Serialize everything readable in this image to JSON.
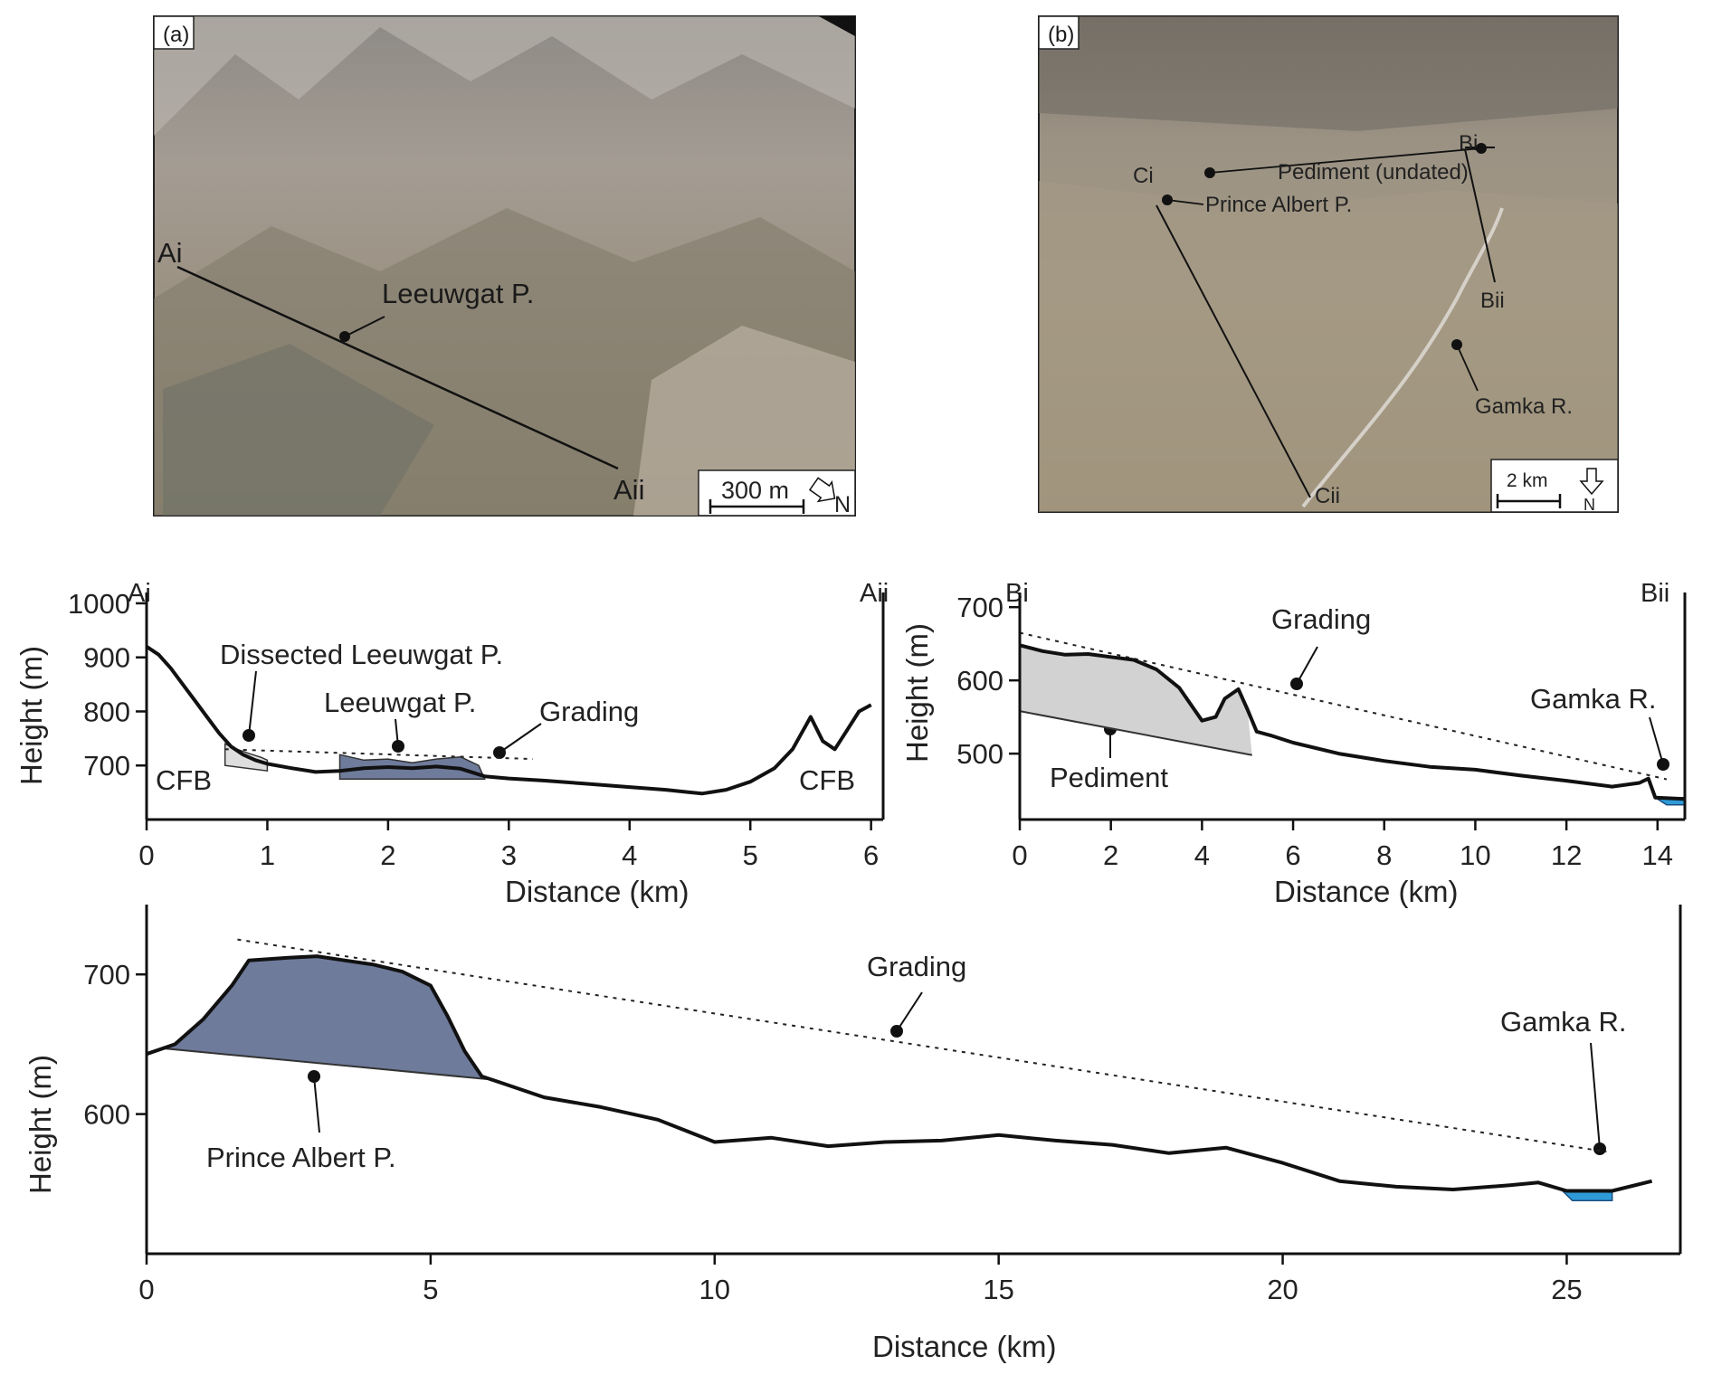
{
  "panel_a": {
    "label": "(a)",
    "profile_start": "Ai",
    "profile_end": "Aii",
    "feature": "Leeuwgat P.",
    "scale_text": "300 m",
    "north": "N"
  },
  "panel_b": {
    "label": "(b)",
    "markers": [
      "Bi",
      "Bii",
      "Ci",
      "Cii"
    ],
    "features": [
      "Pediment (undated)",
      "Prince Albert P.",
      "Gamka R."
    ],
    "scale_text": "2 km",
    "north": "N"
  },
  "chart_data": [
    {
      "type": "line",
      "corner_labels": [
        "Ai",
        "Aii"
      ],
      "xlabel": "Distance (km)",
      "ylabel": "Height (m)",
      "xlim": [
        0,
        6.1
      ],
      "ylim": [
        600,
        1020
      ],
      "xticks": [
        0,
        1,
        2,
        3,
        4,
        5,
        6
      ],
      "yticks": [
        700,
        800,
        900,
        1000
      ],
      "annotations": [
        "Dissected Leeuwgat P.",
        "Leeuwgat P.",
        "Grading",
        "CFB",
        "CFB"
      ],
      "profile": [
        [
          0,
          920
        ],
        [
          0.1,
          905
        ],
        [
          0.2,
          880
        ],
        [
          0.3,
          850
        ],
        [
          0.4,
          820
        ],
        [
          0.5,
          790
        ],
        [
          0.6,
          760
        ],
        [
          0.7,
          735
        ],
        [
          0.8,
          720
        ],
        [
          0.9,
          710
        ],
        [
          1.0,
          703
        ],
        [
          1.2,
          695
        ],
        [
          1.4,
          688
        ],
        [
          1.6,
          690
        ],
        [
          1.8,
          695
        ],
        [
          2.0,
          697
        ],
        [
          2.2,
          695
        ],
        [
          2.4,
          698
        ],
        [
          2.6,
          694
        ],
        [
          2.8,
          680
        ],
        [
          3.0,
          676
        ],
        [
          3.3,
          672
        ],
        [
          3.6,
          667
        ],
        [
          4.0,
          660
        ],
        [
          4.3,
          655
        ],
        [
          4.6,
          648
        ],
        [
          4.8,
          655
        ],
        [
          5.0,
          670
        ],
        [
          5.2,
          695
        ],
        [
          5.35,
          730
        ],
        [
          5.5,
          790
        ],
        [
          5.6,
          745
        ],
        [
          5.7,
          730
        ],
        [
          5.8,
          765
        ],
        [
          5.9,
          800
        ],
        [
          6.0,
          812
        ]
      ],
      "grading": [
        [
          0.65,
          730
        ],
        [
          3.2,
          712
        ]
      ],
      "dissected_pediment": [
        [
          0.65,
          740
        ],
        [
          0.75,
          730
        ],
        [
          0.85,
          722
        ],
        [
          0.95,
          715
        ],
        [
          1.0,
          710
        ],
        [
          1.0,
          690
        ],
        [
          0.65,
          700
        ]
      ],
      "pediment": [
        [
          1.6,
          720
        ],
        [
          1.8,
          710
        ],
        [
          2.0,
          712
        ],
        [
          2.2,
          705
        ],
        [
          2.4,
          712
        ],
        [
          2.6,
          716
        ],
        [
          2.75,
          700
        ],
        [
          2.8,
          675
        ],
        [
          1.6,
          675
        ]
      ]
    },
    {
      "type": "line",
      "corner_labels": [
        "Bi",
        "Bii"
      ],
      "xlabel": "Distance (km)",
      "ylabel": "Height (m)",
      "xlim": [
        0,
        14.6
      ],
      "ylim": [
        410,
        720
      ],
      "xticks": [
        0,
        2,
        4,
        6,
        8,
        10,
        12,
        14
      ],
      "yticks": [
        500,
        600,
        700
      ],
      "annotations": [
        "Grading",
        "Gamka R.",
        "Pediment"
      ],
      "profile": [
        [
          0,
          648
        ],
        [
          0.5,
          640
        ],
        [
          1.0,
          635
        ],
        [
          1.5,
          636
        ],
        [
          2.0,
          632
        ],
        [
          2.5,
          628
        ],
        [
          3.0,
          615
        ],
        [
          3.5,
          590
        ],
        [
          4.0,
          545
        ],
        [
          4.3,
          550
        ],
        [
          4.5,
          575
        ],
        [
          4.8,
          588
        ],
        [
          5.0,
          560
        ],
        [
          5.2,
          530
        ],
        [
          5.5,
          525
        ],
        [
          6.0,
          515
        ],
        [
          7.0,
          500
        ],
        [
          8.0,
          490
        ],
        [
          9.0,
          482
        ],
        [
          10.0,
          478
        ],
        [
          11.0,
          470
        ],
        [
          12.0,
          463
        ],
        [
          13.0,
          455
        ],
        [
          13.6,
          460
        ],
        [
          13.8,
          466
        ],
        [
          13.95,
          440
        ],
        [
          14.6,
          438
        ]
      ],
      "grading": [
        [
          0,
          665
        ],
        [
          14.2,
          465
        ]
      ],
      "pediment_base": [
        [
          0,
          558
        ],
        [
          5.1,
          498
        ]
      ],
      "river": [
        [
          13.95,
          440
        ],
        [
          14.6,
          440
        ],
        [
          14.6,
          430
        ],
        [
          14.2,
          430
        ]
      ]
    },
    {
      "type": "line",
      "xlabel": "Distance (km)",
      "ylabel": "Height (m)",
      "xlim": [
        0,
        27
      ],
      "ylim": [
        500,
        750
      ],
      "xticks": [
        0,
        5,
        10,
        15,
        20,
        25
      ],
      "yticks": [
        600,
        700
      ],
      "annotations": [
        "Grading",
        "Gamka R.",
        "Prince Albert P."
      ],
      "profile": [
        [
          0,
          643
        ],
        [
          0.5,
          650
        ],
        [
          1,
          668
        ],
        [
          1.5,
          692
        ],
        [
          1.8,
          710
        ],
        [
          2.5,
          712
        ],
        [
          3.0,
          713
        ],
        [
          3.5,
          710
        ],
        [
          4.0,
          707
        ],
        [
          4.5,
          702
        ],
        [
          5.0,
          692
        ],
        [
          5.3,
          670
        ],
        [
          5.6,
          645
        ],
        [
          5.9,
          627
        ],
        [
          6.2,
          623
        ],
        [
          7,
          612
        ],
        [
          8,
          605
        ],
        [
          9,
          596
        ],
        [
          10,
          580
        ],
        [
          11,
          583
        ],
        [
          12,
          577
        ],
        [
          13,
          580
        ],
        [
          14,
          581
        ],
        [
          15,
          585
        ],
        [
          16,
          581
        ],
        [
          17,
          578
        ],
        [
          18,
          572
        ],
        [
          19,
          576
        ],
        [
          20,
          565
        ],
        [
          21,
          552
        ],
        [
          22,
          548
        ],
        [
          23,
          546
        ],
        [
          24,
          549
        ],
        [
          24.5,
          551
        ],
        [
          25,
          545
        ],
        [
          25.8,
          545
        ],
        [
          26.5,
          552
        ]
      ],
      "grading": [
        [
          1.6,
          725
        ],
        [
          25.7,
          573
        ]
      ],
      "pediment_base": [
        [
          0.3,
          647
        ],
        [
          6.0,
          625
        ]
      ],
      "river": [
        [
          24.9,
          546
        ],
        [
          25.8,
          544
        ],
        [
          25.8,
          538
        ],
        [
          25.1,
          538
        ]
      ]
    }
  ]
}
